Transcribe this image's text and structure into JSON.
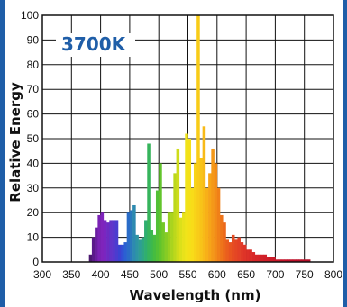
{
  "chart_data": {
    "type": "bar",
    "title": "",
    "annotation": "3700K",
    "xlabel": "Wavelength (nm)",
    "ylabel": "Relative Energy",
    "xlim": [
      300,
      800
    ],
    "ylim": [
      0,
      100
    ],
    "x_ticks": [
      "300",
      "350",
      "400",
      "450",
      "500",
      "550",
      "600",
      "650",
      "700",
      "750",
      "800"
    ],
    "y_ticks": [
      "0",
      "10",
      "20",
      "30",
      "40",
      "50",
      "60",
      "70",
      "80",
      "90",
      "100"
    ],
    "grid": true,
    "bar_width_nm": 5,
    "x": [
      380,
      385,
      390,
      395,
      400,
      405,
      410,
      415,
      420,
      425,
      430,
      435,
      440,
      445,
      450,
      455,
      460,
      465,
      470,
      475,
      480,
      485,
      490,
      495,
      500,
      505,
      510,
      515,
      520,
      525,
      530,
      535,
      540,
      545,
      550,
      555,
      560,
      565,
      570,
      575,
      580,
      585,
      590,
      595,
      600,
      605,
      610,
      615,
      620,
      625,
      630,
      635,
      640,
      645,
      650,
      655,
      660,
      665,
      670,
      675,
      680,
      685,
      690,
      695,
      700,
      705,
      710,
      715,
      720,
      725,
      730,
      735,
      740,
      745,
      750,
      755
    ],
    "values": [
      3,
      10,
      14,
      19,
      20,
      17,
      16,
      17,
      17,
      17,
      7,
      7,
      8,
      20,
      21,
      23,
      11,
      9,
      10,
      17,
      48,
      13,
      11,
      29,
      40,
      16,
      12,
      20,
      20,
      36,
      46,
      18,
      20,
      52,
      50,
      30,
      40,
      100,
      42,
      55,
      30,
      36,
      46,
      40,
      30,
      19,
      16,
      9,
      8,
      11,
      9,
      10,
      8,
      7,
      5,
      5,
      4,
      3,
      3,
      3,
      3,
      2,
      2,
      2,
      1,
      1,
      1,
      1,
      1,
      1,
      1,
      1,
      1,
      1,
      1,
      1
    ],
    "colors": [
      "#4b1870",
      "#5a1a8a",
      "#6a1ea0",
      "#7a22b5",
      "#7f24bb",
      "#7a26c0",
      "#6d2bc2",
      "#6233c8",
      "#5a36cc",
      "#4b3ccf",
      "#3c42d2",
      "#3350d4",
      "#2b60d2",
      "#2a6cc8",
      "#2a78bc",
      "#2d8ab0",
      "#2d95a4",
      "#2e9e94",
      "#2ea682",
      "#2fae70",
      "#36b45c",
      "#3cb84e",
      "#46bc40",
      "#52c036",
      "#62c42c",
      "#74c828",
      "#86cc24",
      "#98d020",
      "#aad41e",
      "#bcd81c",
      "#cedc1a",
      "#dce01a",
      "#e8e21a",
      "#f0e41a",
      "#f4e018",
      "#f8dc18",
      "#f8d418",
      "#f8cc18",
      "#f8c418",
      "#f8ba18",
      "#f8b018",
      "#f6a418",
      "#f49818",
      "#f28c18",
      "#f08018",
      "#ee741a",
      "#ec681c",
      "#ea5e1e",
      "#e85420",
      "#e64c22",
      "#e44624",
      "#e24026",
      "#e03a28",
      "#de3428",
      "#dc3028",
      "#da2c28",
      "#d82828",
      "#d62628",
      "#d42428",
      "#d22228",
      "#d02028",
      "#ce1e28",
      "#cc1c28",
      "#ca1a28",
      "#c81828",
      "#c61628",
      "#c41428",
      "#c21228",
      "#c01028",
      "#be1028",
      "#bc1028",
      "#ba1028",
      "#b81028",
      "#b61028",
      "#b41028",
      "#b21028"
    ]
  },
  "colors": {
    "frame": "#1f5ea8",
    "badge_text": "#1f5ea8",
    "grid": "#111111"
  }
}
